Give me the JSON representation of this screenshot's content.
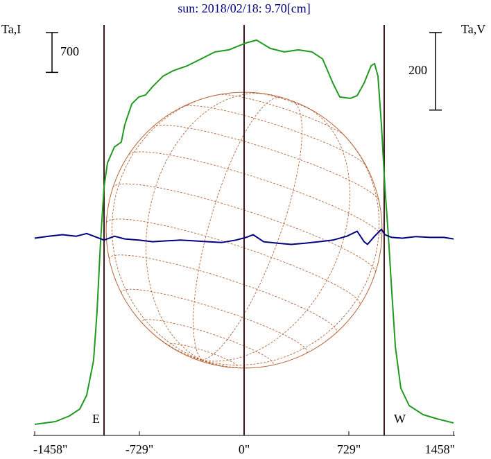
{
  "chart_data": {
    "type": "line",
    "title": "sun: 2018/02/18: 9.70[cm]",
    "y_label": "Ta,I",
    "y2_label": "Ta,V",
    "xlim": [
      -1458,
      1458
    ],
    "xticks": [
      {
        "value": -1458,
        "label": "-1458\""
      },
      {
        "value": -729,
        "label": "-729\""
      },
      {
        "value": 0,
        "label": "0\""
      },
      {
        "value": 729,
        "label": "729\""
      },
      {
        "value": 1458,
        "label": "1458\""
      }
    ],
    "ylim": [
      0,
      7300
    ],
    "y2lim": [
      0,
      1070
    ],
    "scale_bars": [
      {
        "axis": "y",
        "value": 700
      },
      {
        "axis": "y2",
        "value": 200
      }
    ],
    "markers": [
      {
        "x": -975,
        "label": "E"
      },
      {
        "x": 0
      },
      {
        "x": 975,
        "label": "W"
      }
    ],
    "series": [
      {
        "name": "Ta,I",
        "color": "#1f9a1f",
        "axis": "y",
        "x": [
          -1458,
          -1313,
          -1217,
          -1144,
          -1096,
          -1048,
          -1024,
          -1000,
          -975,
          -951,
          -903,
          -855,
          -831,
          -782,
          -734,
          -686,
          -637,
          -565,
          -493,
          -396,
          -299,
          -203,
          -106,
          -58,
          14,
          87,
          183,
          280,
          377,
          473,
          546,
          618,
          666,
          739,
          787,
          835,
          884,
          908,
          932,
          956,
          980,
          1004,
          1028,
          1053,
          1091,
          1149,
          1246,
          1342,
          1458
        ],
        "values": [
          195,
          244,
          342,
          464,
          708,
          1319,
          2173,
          3394,
          4371,
          4799,
          5079,
          5165,
          5470,
          5836,
          5958,
          5995,
          6142,
          6325,
          6422,
          6508,
          6630,
          6752,
          6789,
          6838,
          6911,
          6960,
          6813,
          6752,
          6789,
          6752,
          6630,
          6203,
          5958,
          5934,
          5983,
          6203,
          6508,
          6545,
          6325,
          5470,
          4371,
          3516,
          2540,
          1563,
          830,
          525,
          366,
          293,
          220
        ]
      },
      {
        "name": "Ta,V",
        "color": "#000080",
        "axis": "y2",
        "x": [
          -1458,
          -1362,
          -1265,
          -1169,
          -1096,
          -1024,
          -975,
          -903,
          -831,
          -734,
          -637,
          -541,
          -444,
          -348,
          -251,
          -155,
          -58,
          14,
          63,
          135,
          232,
          328,
          425,
          521,
          618,
          715,
          787,
          835,
          859,
          908,
          956,
          980,
          1028,
          1101,
          1197,
          1294,
          1391,
          1458
        ],
        "values": [
          509,
          514,
          518,
          514,
          521,
          511,
          504,
          514,
          507,
          504,
          500,
          502,
          504,
          502,
          500,
          498,
          504,
          511,
          518,
          500,
          496,
          493,
          496,
          500,
          504,
          514,
          527,
          500,
          493,
          514,
          532,
          518,
          511,
          509,
          513,
          511,
          511,
          507
        ]
      }
    ]
  }
}
